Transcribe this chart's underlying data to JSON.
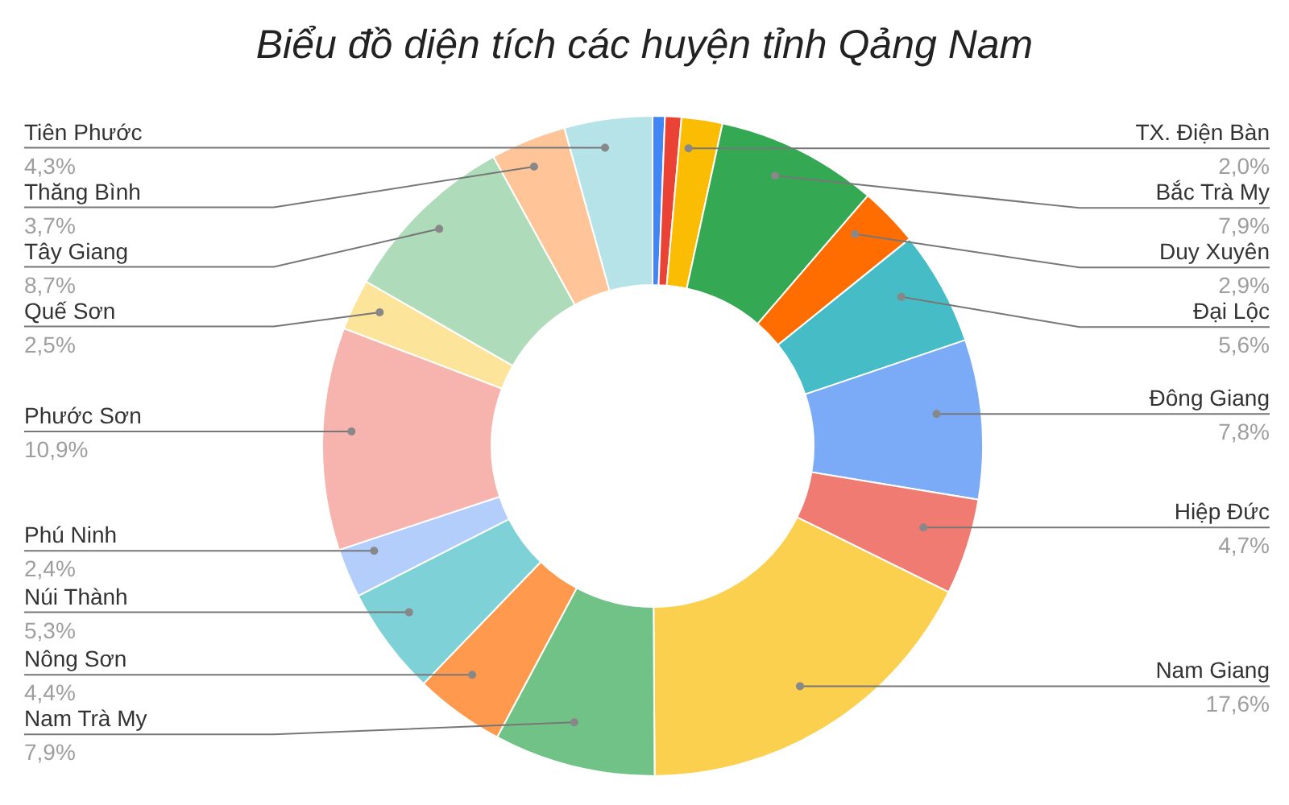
{
  "chart_data": {
    "type": "donut",
    "title": "Biểu đồ diện tích các huyện tỉnh Qảng Nam",
    "categories": [
      null,
      null,
      "TX. Điện Bàn",
      "Bắc Trà My",
      "Duy Xuyên",
      "Đại Lộc",
      "Đông Giang",
      "Hiệp Đức",
      "Nam Giang",
      "Nam Trà My",
      "Nông Sơn",
      "Núi Thành",
      "Phú Ninh",
      "Phước Sơn",
      "Quế Sơn",
      "Tây Giang",
      "Thăng Bình",
      "Tiên Phước"
    ],
    "values": [
      0.6,
      0.8,
      2.0,
      7.9,
      2.9,
      5.6,
      7.8,
      4.7,
      17.6,
      7.9,
      4.4,
      5.3,
      2.4,
      10.9,
      2.5,
      8.7,
      3.7,
      4.3
    ],
    "value_labels": [
      null,
      null,
      "2,0%",
      "7,9%",
      "2,9%",
      "5,6%",
      "7,8%",
      "4,7%",
      "17,6%",
      "7,9%",
      "4,4%",
      "5,3%",
      "2,4%",
      "10,9%",
      "2,5%",
      "8,7%",
      "3,7%",
      "4,3%"
    ],
    "colors": [
      "#4285f4",
      "#ea4335",
      "#fbbc04",
      "#34a853",
      "#ff6d01",
      "#46bdc6",
      "#7baaf7",
      "#f07b72",
      "#fcd04f",
      "#71c287",
      "#ff994d",
      "#7ed1d7",
      "#b3cefb",
      "#f7b4ae",
      "#fde49b",
      "#aedcba",
      "#ffc599",
      "#b5e3e8"
    ]
  }
}
